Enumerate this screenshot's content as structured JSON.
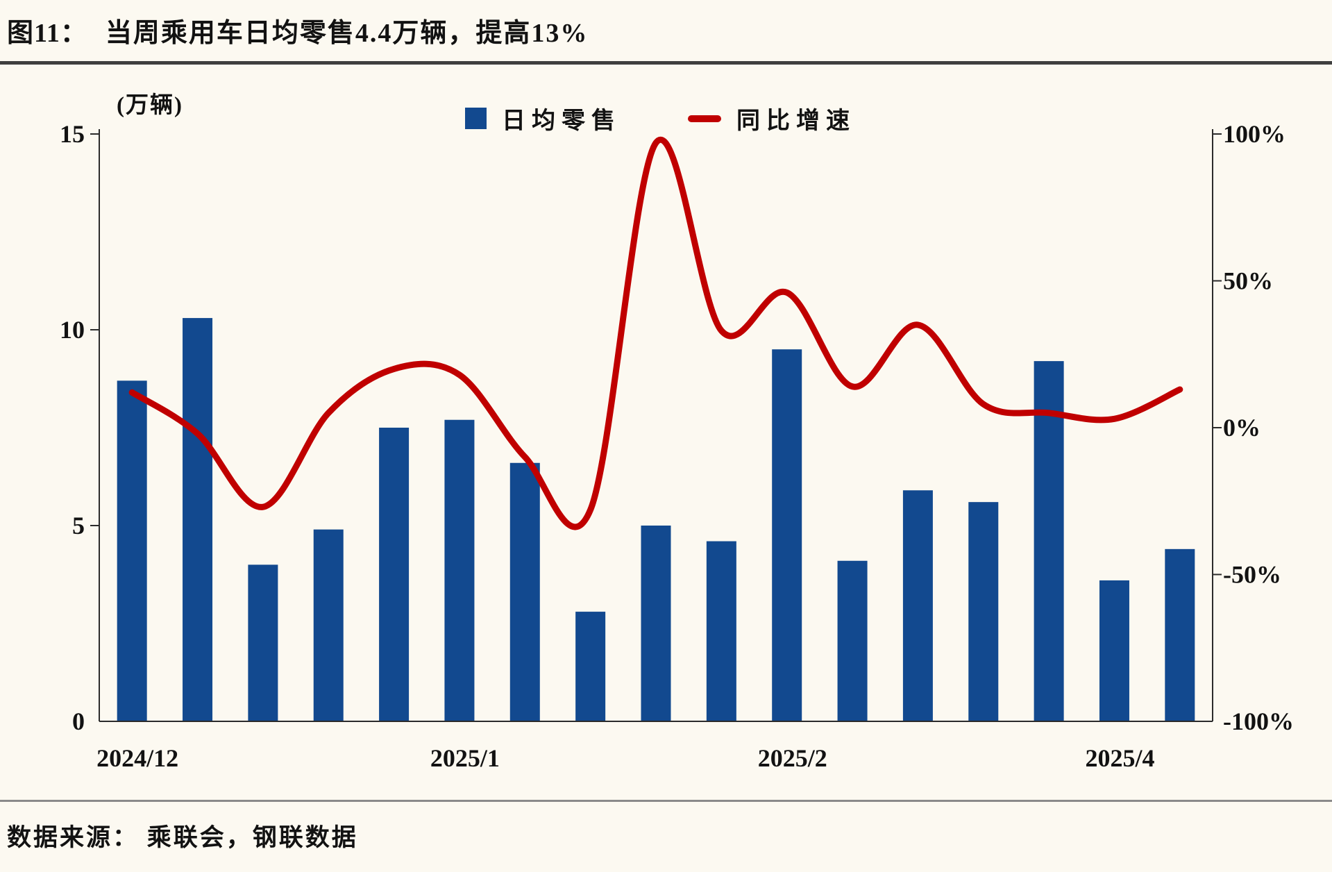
{
  "page": {
    "background": "#FCF9F1"
  },
  "header": {
    "figure_label": "图11：",
    "title": "当周乘用车日均零售4.4万辆，提高13%"
  },
  "legend": {
    "items": [
      {
        "swatch": "square",
        "color": "#12498F",
        "label": "日均零售"
      },
      {
        "swatch": "line",
        "color": "#C00000",
        "label": "同比增速"
      }
    ]
  },
  "footer": {
    "source": "数据来源： 乘联会，钢联数据"
  },
  "chart_data": {
    "type": "bar",
    "subtype": "bar+line-dual-axis",
    "title": "当周乘用车日均零售4.4万辆，提高13%",
    "unit_label": "(万辆)",
    "n_points": 17,
    "series": [
      {
        "name": "日均零售",
        "type": "bar",
        "axis": "left",
        "color": "#12498F",
        "values": [
          8.7,
          10.3,
          4.0,
          4.9,
          7.5,
          7.7,
          6.6,
          2.8,
          5.0,
          4.6,
          9.5,
          4.1,
          5.9,
          5.6,
          9.2,
          3.6,
          4.4
        ]
      },
      {
        "name": "同比增速",
        "type": "line",
        "axis": "right",
        "color": "#C00000",
        "values_pct": [
          12,
          -2,
          -27,
          5,
          20,
          18,
          -10,
          -28,
          97,
          33,
          46,
          14,
          35,
          8,
          5,
          3,
          13
        ]
      }
    ],
    "x_axis": {
      "tick_labels": [
        {
          "index": 0,
          "label": "2024/12"
        },
        {
          "index": 5,
          "label": "2025/1"
        },
        {
          "index": 10,
          "label": "2025/2"
        },
        {
          "index": 15,
          "label": "2025/4"
        }
      ]
    },
    "y_axis_left": {
      "label": "(万辆)",
      "ticks": [
        0,
        5,
        10,
        15
      ],
      "range": [
        0,
        15
      ]
    },
    "y_axis_right": {
      "ticks": [
        -100,
        -50,
        0,
        50,
        100
      ],
      "tick_suffix": "%",
      "range": [
        -100,
        100
      ]
    },
    "grid": false,
    "legend_position": "top-center",
    "axis_color": "#2b2b2b",
    "text_color": "#121212"
  }
}
